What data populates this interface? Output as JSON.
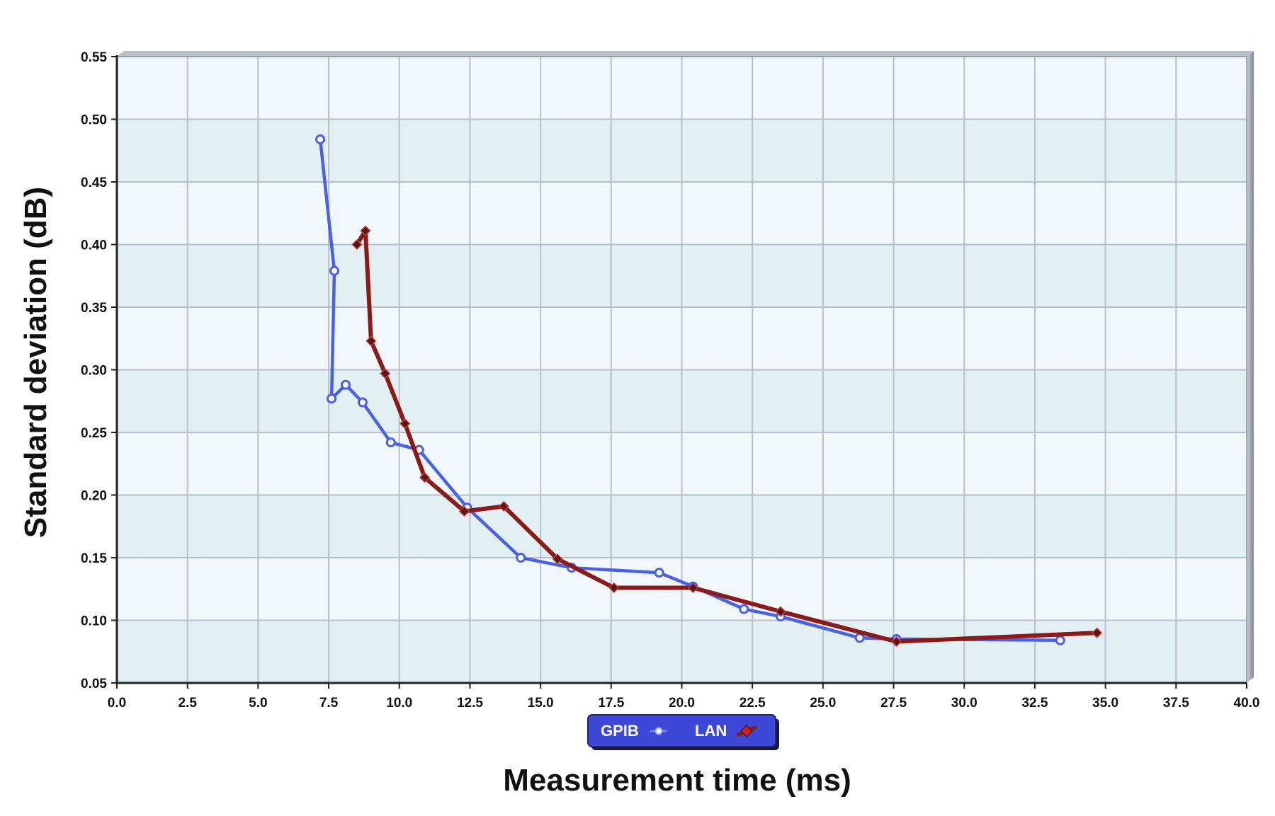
{
  "chart_data": {
    "type": "line",
    "xlabel": "Measurement time (ms)",
    "ylabel": "Standard deviation (dB)",
    "xlim": [
      0,
      40
    ],
    "ylim": [
      0.05,
      0.55
    ],
    "x_ticks": [
      "0.0",
      "2.5",
      "5.0",
      "7.5",
      "10.0",
      "12.5",
      "15.0",
      "17.5",
      "20.0",
      "22.5",
      "25.0",
      "27.5",
      "30.0",
      "32.5",
      "35.0",
      "37.5",
      "40.0"
    ],
    "y_ticks": [
      "0.55",
      "0.50",
      "0.45",
      "0.40",
      "0.35",
      "0.30",
      "0.25",
      "0.20",
      "0.15",
      "0.10",
      "0.05"
    ],
    "grid": true,
    "legend_position": "bottom-center",
    "series": [
      {
        "name": "GPIB",
        "color": "#4a60e8",
        "marker": "circle",
        "points": [
          [
            7.2,
            0.484
          ],
          [
            7.7,
            0.379
          ],
          [
            7.6,
            0.277
          ],
          [
            8.1,
            0.288
          ],
          [
            8.7,
            0.274
          ],
          [
            9.7,
            0.242
          ],
          [
            10.7,
            0.236
          ],
          [
            12.4,
            0.19
          ],
          [
            14.3,
            0.15
          ],
          [
            16.1,
            0.142
          ],
          [
            19.2,
            0.138
          ],
          [
            20.4,
            0.127
          ],
          [
            22.2,
            0.109
          ],
          [
            23.5,
            0.103
          ],
          [
            26.3,
            0.086
          ],
          [
            27.6,
            0.085
          ],
          [
            33.4,
            0.084
          ]
        ]
      },
      {
        "name": "LAN",
        "color": "#8b1a1a",
        "marker": "diamond",
        "points": [
          [
            8.5,
            0.4
          ],
          [
            8.8,
            0.411
          ],
          [
            9.0,
            0.323
          ],
          [
            9.5,
            0.297
          ],
          [
            10.2,
            0.257
          ],
          [
            10.9,
            0.214
          ],
          [
            12.3,
            0.187
          ],
          [
            13.7,
            0.191
          ],
          [
            15.6,
            0.149
          ],
          [
            17.6,
            0.126
          ],
          [
            20.4,
            0.126
          ],
          [
            23.5,
            0.107
          ],
          [
            27.6,
            0.083
          ],
          [
            34.7,
            0.09
          ]
        ]
      }
    ]
  }
}
